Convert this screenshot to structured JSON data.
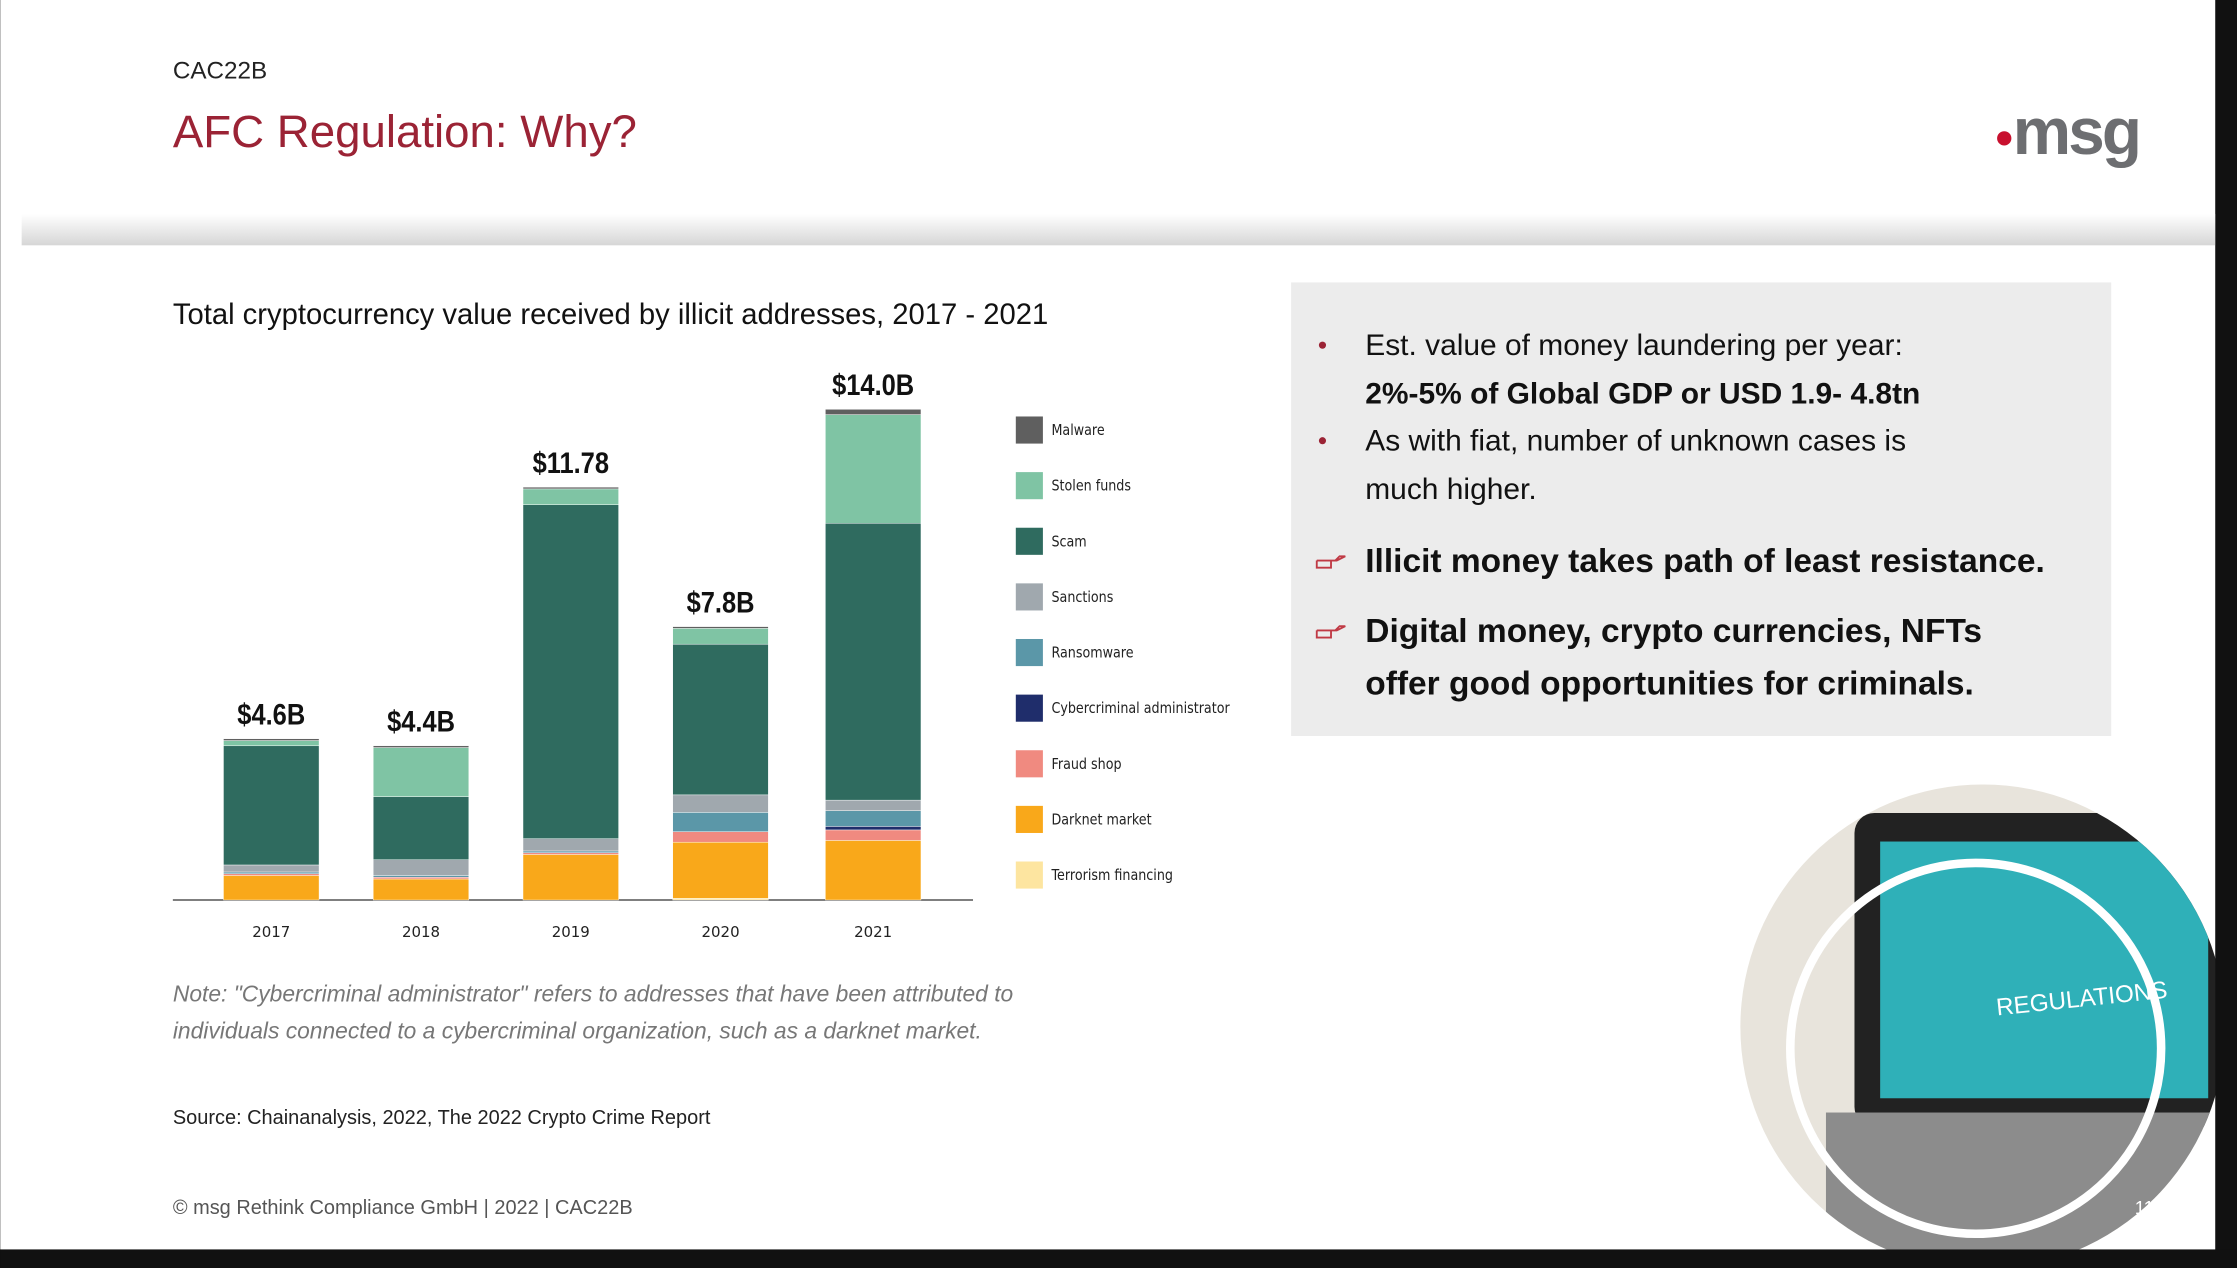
{
  "header": {
    "code": "CAC22B",
    "title": "AFC Regulation: Why?",
    "logo": "msg"
  },
  "chart_data": {
    "type": "stacked-bar",
    "title": "Total cryptocurrency value received by illicit addresses, 2017 - 2021",
    "categories": [
      "2017",
      "2018",
      "2019",
      "2020",
      "2021"
    ],
    "ylim": [
      0,
      14
    ],
    "series": [
      {
        "name": "Terrorism financing",
        "color": "#fde5a0",
        "values": [
          0,
          0,
          0,
          0.05,
          0
        ]
      },
      {
        "name": "Darknet market",
        "color": "#f9a81a",
        "values": [
          0.7,
          0.6,
          1.3,
          1.6,
          1.7
        ]
      },
      {
        "name": "Fraud shop",
        "color": "#f08a80",
        "values": [
          0.05,
          0.05,
          0.05,
          0.3,
          0.3
        ]
      },
      {
        "name": "Cybercriminal administrator",
        "color": "#1f2d6b",
        "values": [
          0,
          0,
          0,
          0,
          0.1
        ]
      },
      {
        "name": "Ransomware",
        "color": "#5b97a8",
        "values": [
          0.05,
          0.05,
          0.05,
          0.55,
          0.45
        ]
      },
      {
        "name": "Sanctions",
        "color": "#a0a8ae",
        "values": [
          0.2,
          0.45,
          0.35,
          0.5,
          0.3
        ]
      },
      {
        "name": "Scam",
        "color": "#2f6b5f",
        "values": [
          3.4,
          1.8,
          9.53,
          4.3,
          7.9
        ]
      },
      {
        "name": "Stolen funds",
        "color": "#7fc4a4",
        "values": [
          0.15,
          1.4,
          0.45,
          0.45,
          3.1
        ]
      },
      {
        "name": "Malware",
        "color": "#5f5f5f",
        "values": [
          0.05,
          0.05,
          0.05,
          0.05,
          0.15
        ]
      }
    ],
    "totals": {
      "values": [
        4.6,
        4.4,
        11.78,
        7.8,
        14.0
      ],
      "value_labels": [
        "$4.6B",
        "$4.4B",
        "$11.78",
        "$7.8B",
        "$14.0B"
      ]
    }
  },
  "note": [
    "Note: \"Cybercriminal administrator\" refers to addresses that have been attributed to",
    "individuals connected to a cybercriminal organization, such as a darknet market."
  ],
  "source": "Source: Chainanalysis, 2022, The 2022 Crypto Crime Report",
  "info_box": {
    "items": [
      [
        "Est. value of money laundering per year:",
        "2%-5% of Global GDP or USD 1.9- 4.8tn"
      ],
      [
        "As with fiat, number of unknown cases is",
        "much higher."
      ],
      [
        "Illicit money takes path of least resistance."
      ],
      [
        "Digital money, crypto currencies, NFTs",
        "offer good opportunities for criminals."
      ]
    ]
  },
  "image_text": "REGULATIONS",
  "footer": {
    "text": "© msg Rethink Compliance GmbH | 2022 | CAC22B",
    "page": "11"
  }
}
